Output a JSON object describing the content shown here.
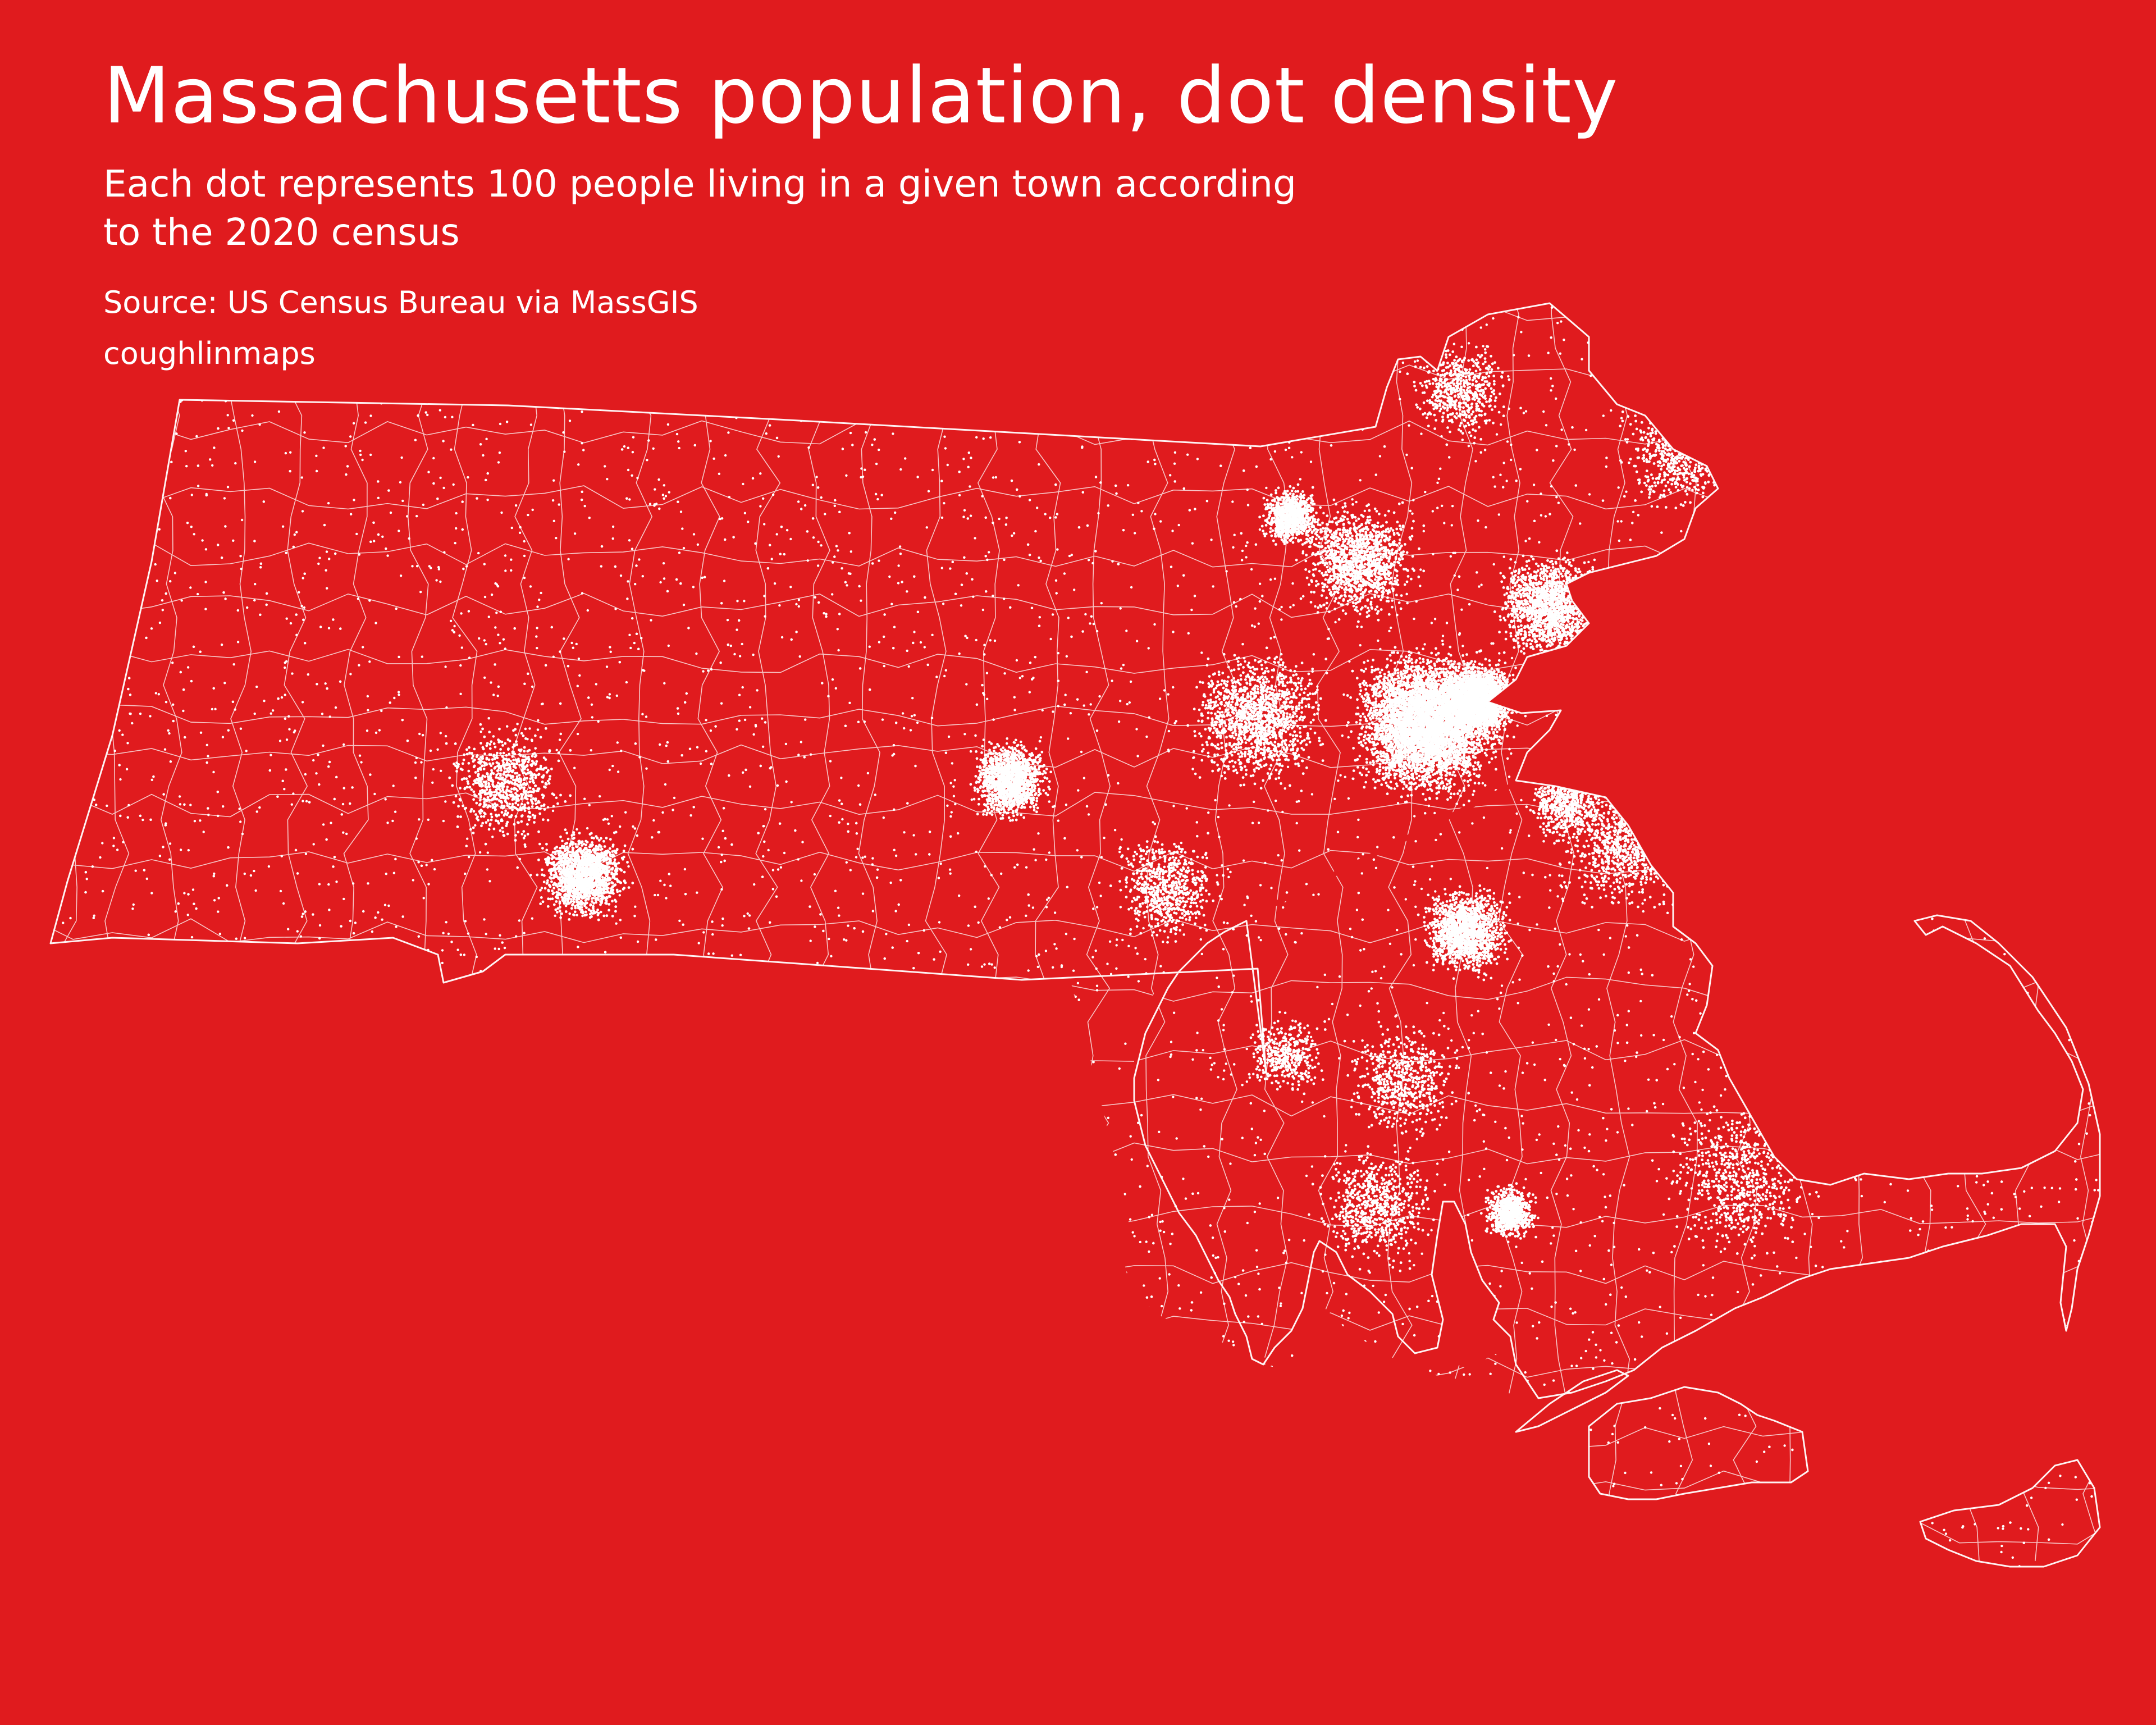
{
  "title": "Massachusetts population, dot density",
  "subtitle": "Each dot represents 100 people living in a given town according to the 2020 census",
  "source": "Source: US Census Bureau via MassGIS",
  "credit": "coughlinmaps",
  "colors": {
    "background": "#E01B1E",
    "foreground": "#FFFFFF"
  }
}
